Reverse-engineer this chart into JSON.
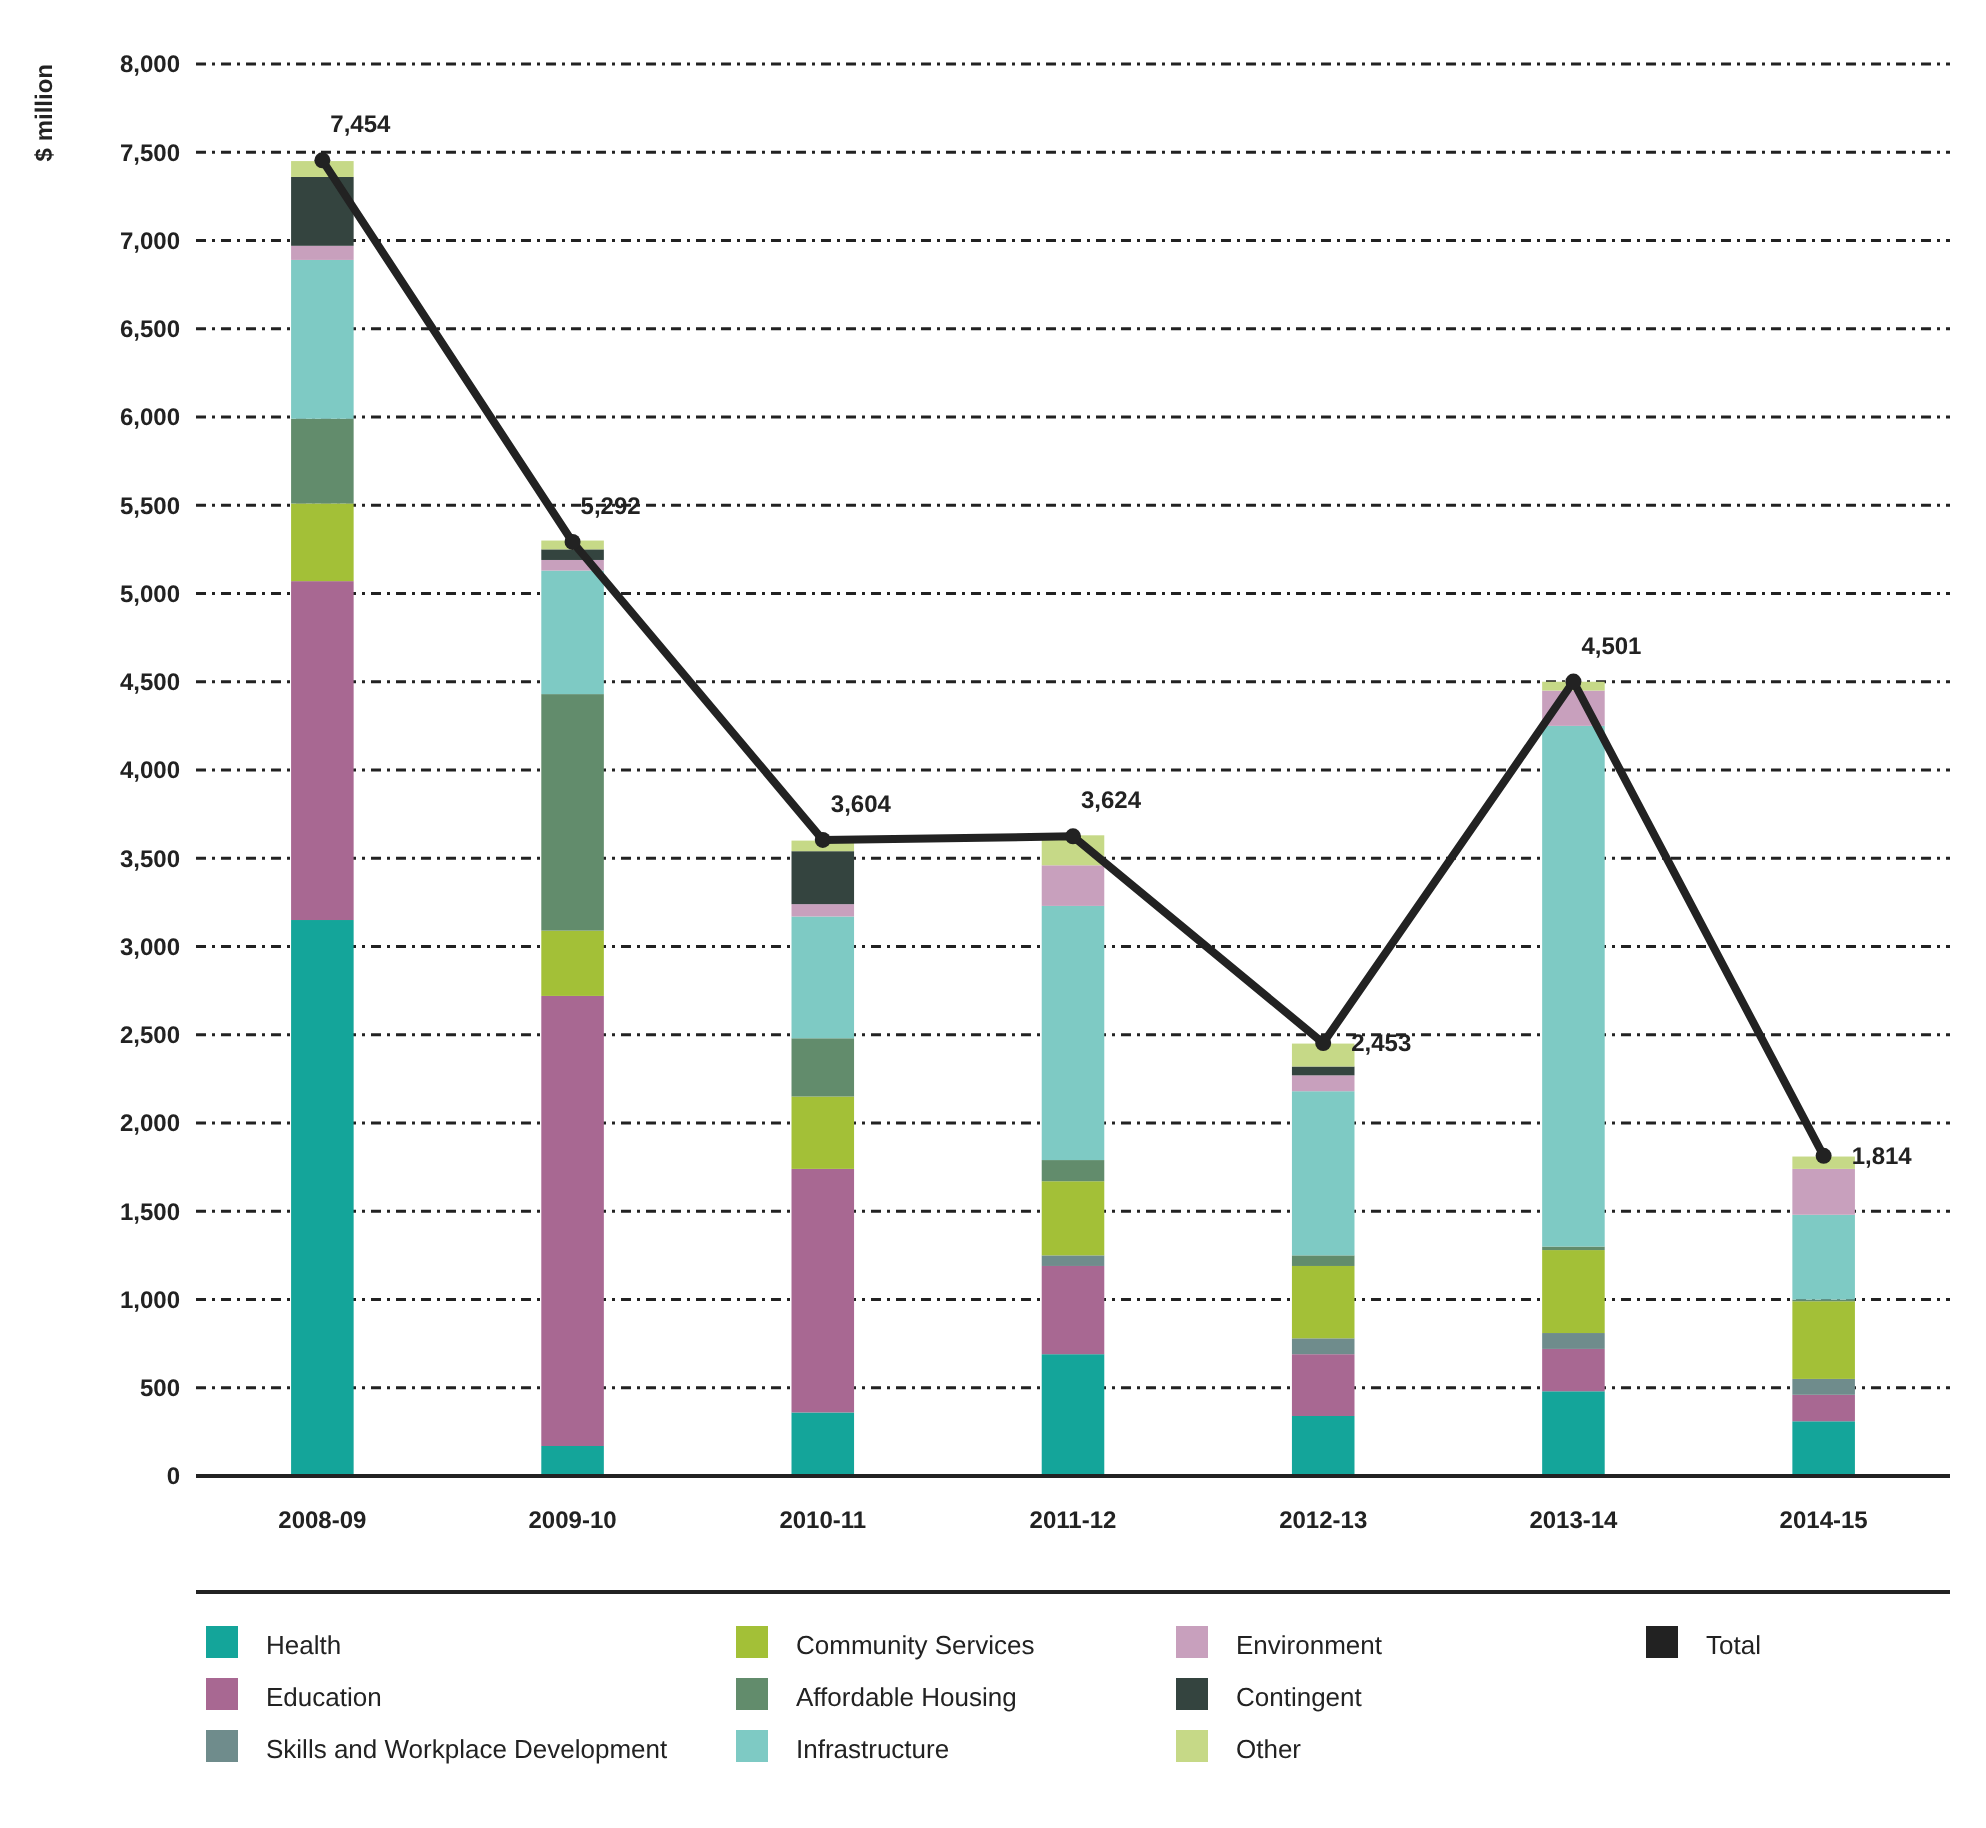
{
  "chart_data": {
    "type": "bar",
    "stacked": true,
    "ylabel": "$ million",
    "categories": [
      "2008-09",
      "2009-10",
      "2010-11",
      "2011-12",
      "2012-13",
      "2013-14",
      "2014-15"
    ],
    "series": [
      {
        "name": "Health",
        "color": "#14a59a",
        "values": [
          3150,
          170,
          360,
          690,
          340,
          480,
          310
        ]
      },
      {
        "name": "Education",
        "color": "#a86892",
        "values": [
          1920,
          2550,
          1380,
          500,
          350,
          240,
          150
        ]
      },
      {
        "name": "Skills and Workplace Development",
        "color": "#6f8c8c",
        "values": [
          0,
          0,
          0,
          60,
          90,
          90,
          90
        ]
      },
      {
        "name": "Community Services",
        "color": "#a3c037",
        "values": [
          440,
          370,
          410,
          420,
          410,
          470,
          440
        ]
      },
      {
        "name": "Affordable Housing",
        "color": "#628c6c",
        "values": [
          480,
          1340,
          330,
          120,
          60,
          20,
          10
        ]
      },
      {
        "name": "Infrastructure",
        "color": "#7ecac4",
        "values": [
          900,
          700,
          690,
          1440,
          930,
          2950,
          480
        ]
      },
      {
        "name": "Environment",
        "color": "#c8a0bd",
        "values": [
          80,
          60,
          70,
          230,
          90,
          200,
          260
        ]
      },
      {
        "name": "Contingent",
        "color": "#34443f",
        "values": [
          390,
          60,
          300,
          0,
          50,
          0,
          0
        ]
      },
      {
        "name": "Other",
        "color": "#c6d987",
        "values": [
          90,
          50,
          60,
          170,
          130,
          50,
          70
        ]
      },
      {
        "name": "Total",
        "type": "line",
        "color": "#222222",
        "marker": "circle",
        "values": [
          7454,
          5292,
          3604,
          3624,
          2453,
          4501,
          1814
        ],
        "value_labels": [
          "7,454",
          "5,292",
          "3,604",
          "3,624",
          "2,453",
          "4,501",
          "1,814"
        ]
      }
    ],
    "ylim": [
      0,
      8000
    ],
    "yticks": [
      0,
      500,
      {
        "value": 1000,
        "label": "1,000"
      },
      {
        "value": 1500,
        "label": "1,500"
      },
      {
        "value": 2000,
        "label": "2,000"
      },
      {
        "value": 2500,
        "label": "2,500"
      },
      {
        "value": 3000,
        "label": "3,000"
      },
      {
        "value": 3500,
        "label": "3,500"
      },
      {
        "value": 4000,
        "label": "4,000"
      },
      {
        "value": 4500,
        "label": "4,500"
      },
      {
        "value": 5000,
        "label": "5,000"
      },
      {
        "value": 5500,
        "label": "5,500"
      },
      {
        "value": 6000,
        "label": "6,000"
      },
      {
        "value": 6500,
        "label": "6,500"
      },
      {
        "value": 7000,
        "label": "7,000"
      },
      {
        "value": 7500,
        "label": "7,500"
      },
      {
        "value": 8000,
        "label": "8,000"
      }
    ],
    "grid": "y",
    "legend": "bottom"
  }
}
